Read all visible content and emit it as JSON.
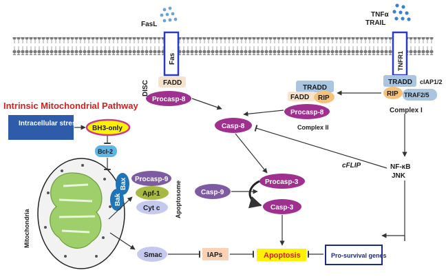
{
  "ligands": {
    "fasl": "FasL",
    "tnf_alpha": "TNFα",
    "trail": "TRAIL"
  },
  "receptors": {
    "fas": "Fas",
    "tnfr1": "TNFR1"
  },
  "disc": {
    "label": "DISC",
    "fadd": "FADD",
    "procasp8": "Procasp-8"
  },
  "complex_i": {
    "label": "Complex I",
    "tradd": "TRADD",
    "ciap": "cIAP1/2",
    "rip": "RIP",
    "traf": "TRAF2/5"
  },
  "complex_ii": {
    "label": "Complex II",
    "tradd": "TRADD",
    "fadd": "FADD",
    "rip": "RIP",
    "procasp8": "Procasp-8"
  },
  "intrinsic": {
    "title": "Intrinsic Mitochondrial Pathway",
    "stress": "Intracellular stress",
    "bh3": "BH3-only",
    "bcl2": "Bcl-2",
    "bax": "Bax",
    "bak": "Bak",
    "mitochondria": "Mitochondria"
  },
  "apoptosome": {
    "label": "Apoptosome",
    "procasp9": "Procasp-9",
    "apaf1": "Apf-1",
    "cytc": "Cyt c"
  },
  "nodes": {
    "casp8": "Casp-8",
    "casp9": "Casp-9",
    "procasp3": "Procasp-3",
    "casp3": "Casp-3",
    "apoptosis": "Apoptosis",
    "smac": "Smac",
    "iaps": "IAPs",
    "prosurvival": "Pro-survival genes",
    "cflip": "cFLIP",
    "nfkb": "NF-κB",
    "jnk": "JNK"
  },
  "colors": {
    "casp_purple": "#a0308f",
    "membrane_gray": "#7a7a7a",
    "receptor_blue": "#2b3bbf",
    "stress_blue": "#2e5cab",
    "title_red": "#d11f1f",
    "tradd_blue": "#a9c5e0",
    "rip_orange": "#f6c27a",
    "fadd_peach": "#f7e2cc",
    "bcl2_blue": "#5cb6e6",
    "bax_blue": "#1f73b7",
    "apaf_green": "#a7b843",
    "cytc_lav": "#c6c9ef",
    "casp9_purple": "#7e5aa3",
    "bh3_yellow": "#fff200",
    "iap_peach": "#fbd3b4",
    "mito_green": "#9fcf6a",
    "ligand_blue": "#3d7fcf"
  }
}
